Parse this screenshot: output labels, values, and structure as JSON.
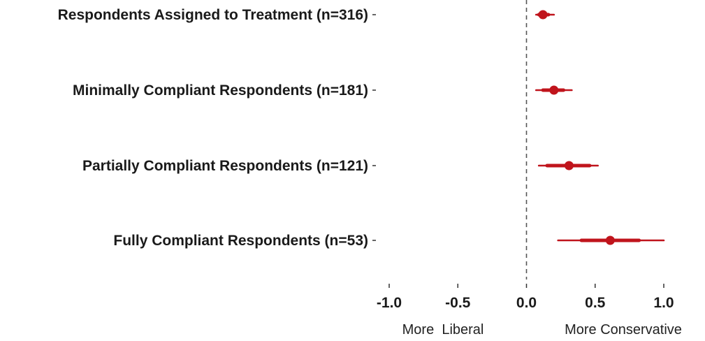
{
  "chart_data": {
    "type": "scatter",
    "subtype": "coefficient-plot",
    "title": "",
    "xlabel": "",
    "ylabel": "",
    "xlim": [
      -1.0,
      1.0
    ],
    "x_ticks": [
      -1.0,
      -0.5,
      0.0,
      0.5,
      1.0
    ],
    "x_tick_labels": [
      "-1.0",
      "-0.5",
      "0.0",
      "0.5",
      "1.0"
    ],
    "reference_line": 0.0,
    "direction_labels": {
      "left": "More  Liberal",
      "right": "More Conservative"
    },
    "grid": false,
    "color": "#c0141c",
    "rows": [
      {
        "label": "Respondents Assigned to Treatment (n=316)",
        "estimate": 0.12,
        "ci_outer": [
          0.07,
          0.2
        ],
        "ci_inner": [
          0.09,
          0.16
        ]
      },
      {
        "label": "Minimally Compliant Respondents (n=181)",
        "estimate": 0.2,
        "ci_outer": [
          0.07,
          0.33
        ],
        "ci_inner": [
          0.12,
          0.27
        ]
      },
      {
        "label": "Partially Compliant Respondents (n=121)",
        "estimate": 0.31,
        "ci_outer": [
          0.09,
          0.52
        ],
        "ci_inner": [
          0.15,
          0.46
        ]
      },
      {
        "label": "Fully Compliant Respondents (n=53)",
        "estimate": 0.61,
        "ci_outer": [
          0.23,
          1.0
        ],
        "ci_inner": [
          0.4,
          0.82
        ]
      }
    ]
  }
}
